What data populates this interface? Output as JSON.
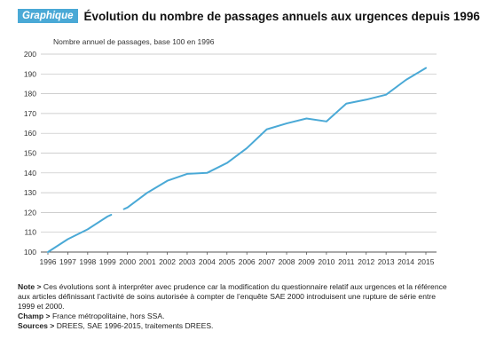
{
  "header": {
    "badge": "Graphique",
    "title": "Évolution du nombre de passages annuels aux urgences depuis 1996"
  },
  "chart_data": {
    "type": "line",
    "title": "Évolution du nombre de passages annuels aux urgences depuis 1996",
    "ylabel": "Nombre annuel de passages, base 100 en 1996",
    "xlabel": "",
    "ylim": [
      100,
      200
    ],
    "yticks": [
      100,
      110,
      120,
      130,
      140,
      150,
      160,
      170,
      180,
      190,
      200
    ],
    "grid": "horizontal",
    "legend": "none",
    "color": "#4aa9d6",
    "x": [
      "1996",
      "1997",
      "1998",
      "1999",
      "2000",
      "2001",
      "2002",
      "2003",
      "2004",
      "2005",
      "2006",
      "2007",
      "2008",
      "2009",
      "2010",
      "2011",
      "2012",
      "2013",
      "2014",
      "2015"
    ],
    "series": [
      {
        "name": "",
        "values": [
          100,
          106.5,
          111.5,
          118,
          122.5,
          130,
          136,
          139.5,
          140,
          145,
          152.5,
          162,
          165,
          167.5,
          166,
          175,
          177,
          179.5,
          187,
          193
        ]
      }
    ],
    "break_between": [
      "1999",
      "2000"
    ]
  },
  "notes": {
    "note_label": "Note >",
    "note_text": "Ces évolutions sont à interpréter avec prudence car la modification du questionnaire relatif aux urgences et la référence aux articles définissant l’activité de soins autorisée à compter de l’enquête SAE 2000 introduisent une rupture de série entre 1999 et 2000.",
    "champ_label": "Champ >",
    "champ_text": "France métropolitaine, hors SSA.",
    "sources_label": "Sources >",
    "sources_text": "DREES, SAE 1996-2015, traitements DREES."
  }
}
